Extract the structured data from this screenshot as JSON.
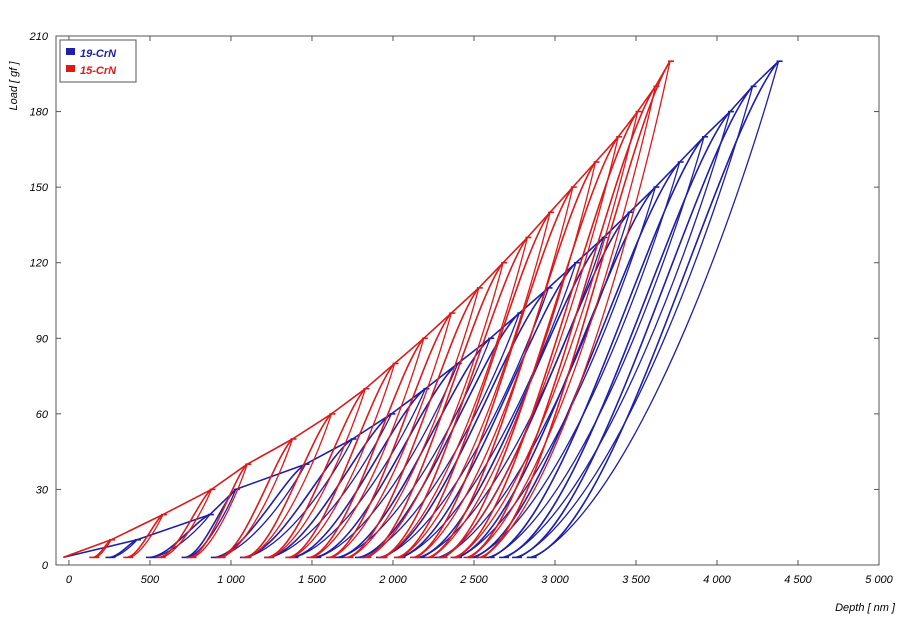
{
  "chart_data": {
    "type": "line",
    "title": "",
    "xlabel": "Depth [ nm ]",
    "ylabel": "Load [ gf ]",
    "xlim": [
      -80,
      5000
    ],
    "ylim": [
      0,
      210
    ],
    "x_ticks": [
      0,
      500,
      1000,
      1500,
      2000,
      2500,
      3000,
      3500,
      4000,
      4500,
      5000
    ],
    "x_tick_labels": [
      "0",
      "500",
      "1 000",
      "1 500",
      "2 000",
      "2 500",
      "3 000",
      "3 500",
      "4 000",
      "4 500",
      "5 000"
    ],
    "y_ticks": [
      0,
      30,
      60,
      90,
      120,
      150,
      180,
      210
    ],
    "y_tick_labels": [
      "0",
      "30",
      "60",
      "90",
      "120",
      "150",
      "180",
      "210"
    ],
    "grid": false,
    "legend": {
      "placement": "top-left"
    },
    "series": [
      {
        "name": "19-CrN",
        "color": "#1f1fa8",
        "cycles": [
          {
            "peak_load": 10,
            "peak_depth": 420,
            "residual_depth": 250
          },
          {
            "peak_load": 20,
            "peak_depth": 870,
            "residual_depth": 500
          },
          {
            "peak_load": 30,
            "peak_depth": 1030,
            "residual_depth": 720
          },
          {
            "peak_load": 40,
            "peak_depth": 1460,
            "residual_depth": 900
          },
          {
            "peak_load": 50,
            "peak_depth": 1750,
            "residual_depth": 1080
          },
          {
            "peak_load": 60,
            "peak_depth": 1990,
            "residual_depth": 1230
          },
          {
            "peak_load": 70,
            "peak_depth": 2200,
            "residual_depth": 1380
          },
          {
            "peak_load": 80,
            "peak_depth": 2400,
            "residual_depth": 1520
          },
          {
            "peak_load": 90,
            "peak_depth": 2600,
            "residual_depth": 1660
          },
          {
            "peak_load": 100,
            "peak_depth": 2780,
            "residual_depth": 1790
          },
          {
            "peak_load": 110,
            "peak_depth": 2960,
            "residual_depth": 1920
          },
          {
            "peak_load": 120,
            "peak_depth": 3130,
            "residual_depth": 2040
          },
          {
            "peak_load": 130,
            "peak_depth": 3300,
            "residual_depth": 2160
          },
          {
            "peak_load": 140,
            "peak_depth": 3460,
            "residual_depth": 2280
          },
          {
            "peak_load": 150,
            "peak_depth": 3620,
            "residual_depth": 2390
          },
          {
            "peak_load": 160,
            "peak_depth": 3770,
            "residual_depth": 2490
          },
          {
            "peak_load": 170,
            "peak_depth": 3920,
            "residual_depth": 2590
          },
          {
            "peak_load": 180,
            "peak_depth": 4080,
            "residual_depth": 2680
          },
          {
            "peak_load": 190,
            "peak_depth": 4220,
            "residual_depth": 2760
          },
          {
            "peak_load": 200,
            "peak_depth": 4380,
            "residual_depth": 2850
          }
        ]
      },
      {
        "name": "15-CrN",
        "color": "#dd1a1a",
        "cycles": [
          {
            "peak_load": 10,
            "peak_depth": 260,
            "residual_depth": 150
          },
          {
            "peak_load": 20,
            "peak_depth": 580,
            "residual_depth": 360
          },
          {
            "peak_load": 30,
            "peak_depth": 880,
            "residual_depth": 560
          },
          {
            "peak_load": 40,
            "peak_depth": 1100,
            "residual_depth": 750
          },
          {
            "peak_load": 50,
            "peak_depth": 1380,
            "residual_depth": 930
          },
          {
            "peak_load": 60,
            "peak_depth": 1620,
            "residual_depth": 1090
          },
          {
            "peak_load": 70,
            "peak_depth": 1830,
            "residual_depth": 1230
          },
          {
            "peak_load": 80,
            "peak_depth": 2010,
            "residual_depth": 1360
          },
          {
            "peak_load": 90,
            "peak_depth": 2190,
            "residual_depth": 1490
          },
          {
            "peak_load": 100,
            "peak_depth": 2360,
            "residual_depth": 1610
          },
          {
            "peak_load": 110,
            "peak_depth": 2530,
            "residual_depth": 1720
          },
          {
            "peak_load": 120,
            "peak_depth": 2680,
            "residual_depth": 1830
          },
          {
            "peak_load": 130,
            "peak_depth": 2830,
            "residual_depth": 1930
          },
          {
            "peak_load": 140,
            "peak_depth": 2970,
            "residual_depth": 2030
          },
          {
            "peak_load": 150,
            "peak_depth": 3110,
            "residual_depth": 2130
          },
          {
            "peak_load": 160,
            "peak_depth": 3250,
            "residual_depth": 2220
          },
          {
            "peak_load": 170,
            "peak_depth": 3390,
            "residual_depth": 2300
          },
          {
            "peak_load": 180,
            "peak_depth": 3510,
            "residual_depth": 2380
          },
          {
            "peak_load": 190,
            "peak_depth": 3620,
            "residual_depth": 2460
          },
          {
            "peak_load": 200,
            "peak_depth": 3710,
            "residual_depth": 2540
          }
        ]
      }
    ]
  }
}
